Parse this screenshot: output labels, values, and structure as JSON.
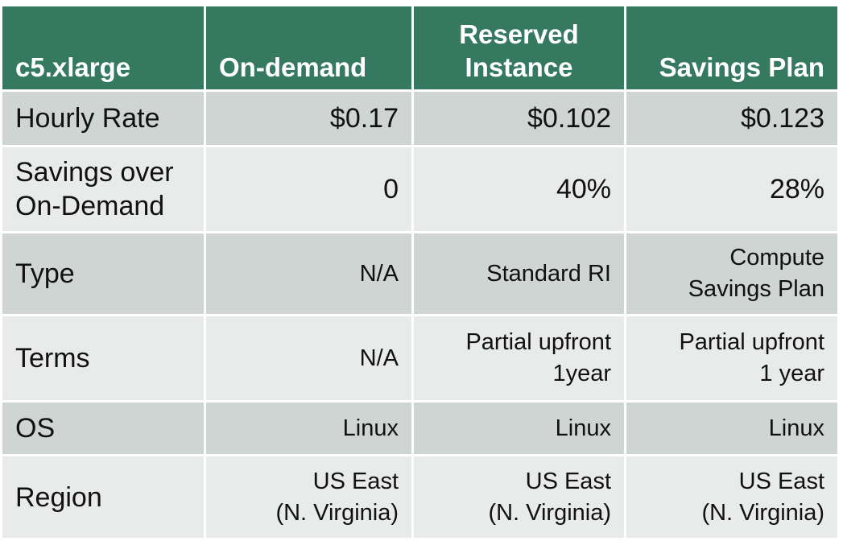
{
  "table": {
    "headers": [
      "c5.xlarge",
      "On-demand",
      [
        "Reserved",
        "Instance"
      ],
      "Savings Plan"
    ],
    "rows": [
      {
        "label": [
          "Hourly Rate"
        ],
        "values": [
          [
            "$0.17"
          ],
          [
            "$0.102"
          ],
          [
            "$0.123"
          ]
        ]
      },
      {
        "label": [
          "Savings over",
          "On-Demand"
        ],
        "values": [
          [
            "0"
          ],
          [
            "40%"
          ],
          [
            "28%"
          ]
        ]
      },
      {
        "label": [
          "Type"
        ],
        "values": [
          [
            "N/A"
          ],
          [
            "Standard RI"
          ],
          [
            "Compute",
            "Savings Plan"
          ]
        ]
      },
      {
        "label": [
          "Terms"
        ],
        "values": [
          [
            "N/A"
          ],
          [
            "Partial upfront",
            "1year"
          ],
          [
            "Partial upfront",
            "1 year"
          ]
        ]
      },
      {
        "label": [
          "OS"
        ],
        "values": [
          [
            "Linux"
          ],
          [
            "Linux"
          ],
          [
            "Linux"
          ]
        ]
      },
      {
        "label": [
          "Region"
        ],
        "values": [
          [
            "US East",
            "(N. Virginia)"
          ],
          [
            "US East",
            "(N. Virginia)"
          ],
          [
            "US East",
            "(N. Virginia)"
          ]
        ]
      }
    ]
  },
  "colors": {
    "header_bg": "#357a60",
    "row_dark": "#cfd5d3",
    "row_light": "#e8ebea",
    "header_text": "#ffffff"
  }
}
